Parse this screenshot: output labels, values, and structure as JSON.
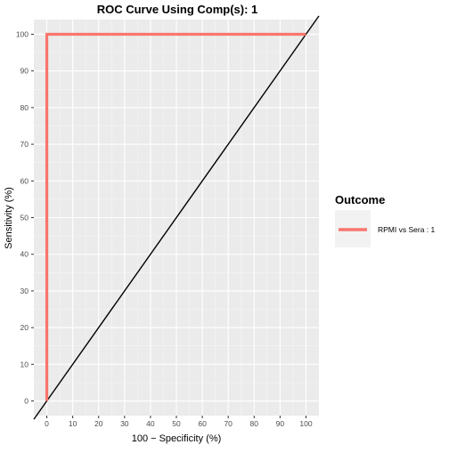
{
  "chart_data": {
    "type": "line",
    "title": "ROC Curve Using Comp(s): 1",
    "xlabel": "100 − Specificity (%)",
    "ylabel": "Sensitivity (%)",
    "xlim": [
      -5,
      105
    ],
    "ylim": [
      -4,
      104
    ],
    "xticks": [
      0,
      10,
      20,
      30,
      40,
      50,
      60,
      70,
      80,
      90,
      100
    ],
    "yticks": [
      0,
      10,
      20,
      30,
      40,
      50,
      60,
      70,
      80,
      90,
      100
    ],
    "grid": true,
    "legend": {
      "title": "Outcome",
      "placement": "right"
    },
    "series": [
      {
        "name": "RPMI vs Sera : 1",
        "color": "#f8766d",
        "x": [
          0,
          0,
          100
        ],
        "y": [
          0,
          100,
          100
        ]
      }
    ],
    "reference_line": {
      "color": "#000000",
      "x": [
        -5,
        105
      ],
      "y": [
        -5,
        105
      ]
    }
  }
}
